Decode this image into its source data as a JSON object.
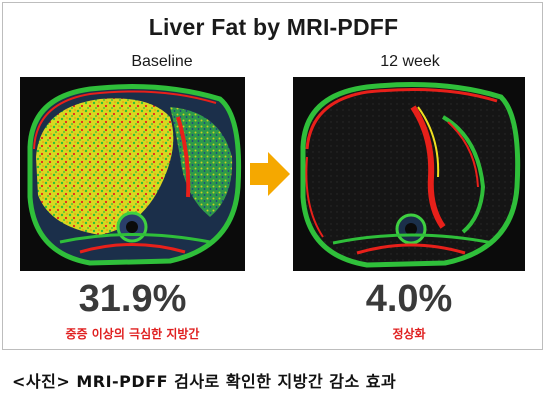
{
  "figure": {
    "title": "Liver Fat by MRI-PDFF",
    "panels": [
      {
        "label": "Baseline",
        "value": "31.9%",
        "note": "중증 이상의 극심한 지방간"
      },
      {
        "label": "12 week",
        "value": "4.0%",
        "note": "정상화"
      }
    ],
    "colors": {
      "fat_high": "#e8201a",
      "fat_mid": "#f0e020",
      "fat_low": "#2fbf3a",
      "arrow": "#f5a800",
      "note": "#e02020"
    },
    "icons": {
      "arrow": "right-arrow-icon"
    }
  },
  "caption": "<사진> MRI-PDFF 검사로 확인한 지방간 감소 효과"
}
